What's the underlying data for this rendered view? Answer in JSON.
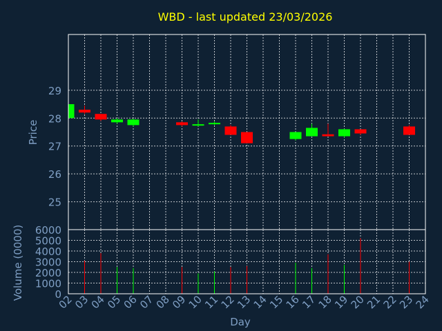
{
  "chart_data": {
    "type": "candlestick",
    "title": "WBD - last updated 23/03/2026",
    "xlabel": "Day",
    "price_panel": {
      "ylabel": "Price",
      "ylim": [
        24,
        31
      ],
      "yticks": [
        25,
        26,
        27,
        28,
        29
      ]
    },
    "volume_panel": {
      "ylabel": "Volume (0000)",
      "ylim": [
        0,
        6000
      ],
      "yticks": [
        0,
        1000,
        2000,
        3000,
        4000,
        5000,
        6000
      ]
    },
    "x_tick_labels": [
      "02",
      "03",
      "04",
      "05",
      "06",
      "07",
      "08",
      "09",
      "10",
      "11",
      "12",
      "13",
      "14",
      "15",
      "16",
      "17",
      "18",
      "19",
      "20",
      "21",
      "22",
      "23",
      "24"
    ],
    "grid": true,
    "colors": {
      "up": "#00ff00",
      "down": "#ff0000",
      "title": "#ffff00",
      "axis_text": "#7f9fc4",
      "background": "#0f2133",
      "grid": "#ffffff"
    },
    "candles": [
      {
        "day": "02",
        "open": 28.0,
        "close": 28.5,
        "high": 28.5,
        "low": 28.0,
        "volume": 0
      },
      {
        "day": "03",
        "open": 28.3,
        "close": 28.2,
        "high": 28.45,
        "low": 28.15,
        "volume": 3100
      },
      {
        "day": "04",
        "open": 28.15,
        "close": 27.95,
        "high": 28.15,
        "low": 27.9,
        "volume": 3800
      },
      {
        "day": "05",
        "open": 27.85,
        "close": 27.95,
        "high": 28.0,
        "low": 27.8,
        "volume": 2500
      },
      {
        "day": "06",
        "open": 27.75,
        "close": 27.95,
        "high": 27.98,
        "low": 27.7,
        "volume": 2400
      },
      {
        "day": "09",
        "open": 27.85,
        "close": 27.75,
        "high": 27.88,
        "low": 27.7,
        "volume": 2500
      },
      {
        "day": "10",
        "open": 27.75,
        "close": 27.78,
        "high": 27.95,
        "low": 27.7,
        "volume": 1900
      },
      {
        "day": "11",
        "open": 27.78,
        "close": 27.83,
        "high": 27.87,
        "low": 27.75,
        "volume": 2100
      },
      {
        "day": "12",
        "open": 27.7,
        "close": 27.4,
        "high": 27.75,
        "low": 27.4,
        "volume": 2500
      },
      {
        "day": "13",
        "open": 27.5,
        "close": 27.1,
        "high": 27.5,
        "low": 27.1,
        "volume": 2600
      },
      {
        "day": "16",
        "open": 27.25,
        "close": 27.5,
        "high": 27.5,
        "low": 27.2,
        "volume": 2900
      },
      {
        "day": "17",
        "open": 27.35,
        "close": 27.65,
        "high": 27.8,
        "low": 27.35,
        "volume": 2400
      },
      {
        "day": "18",
        "open": 27.42,
        "close": 27.35,
        "high": 27.8,
        "low": 27.35,
        "volume": 3700
      },
      {
        "day": "19",
        "open": 27.35,
        "close": 27.6,
        "high": 27.62,
        "low": 27.3,
        "volume": 2700
      },
      {
        "day": "20",
        "open": 27.6,
        "close": 27.45,
        "high": 27.6,
        "low": 27.4,
        "volume": 5200
      },
      {
        "day": "23",
        "open": 27.7,
        "close": 27.4,
        "high": 27.75,
        "low": 27.4,
        "volume": 3000
      }
    ]
  }
}
